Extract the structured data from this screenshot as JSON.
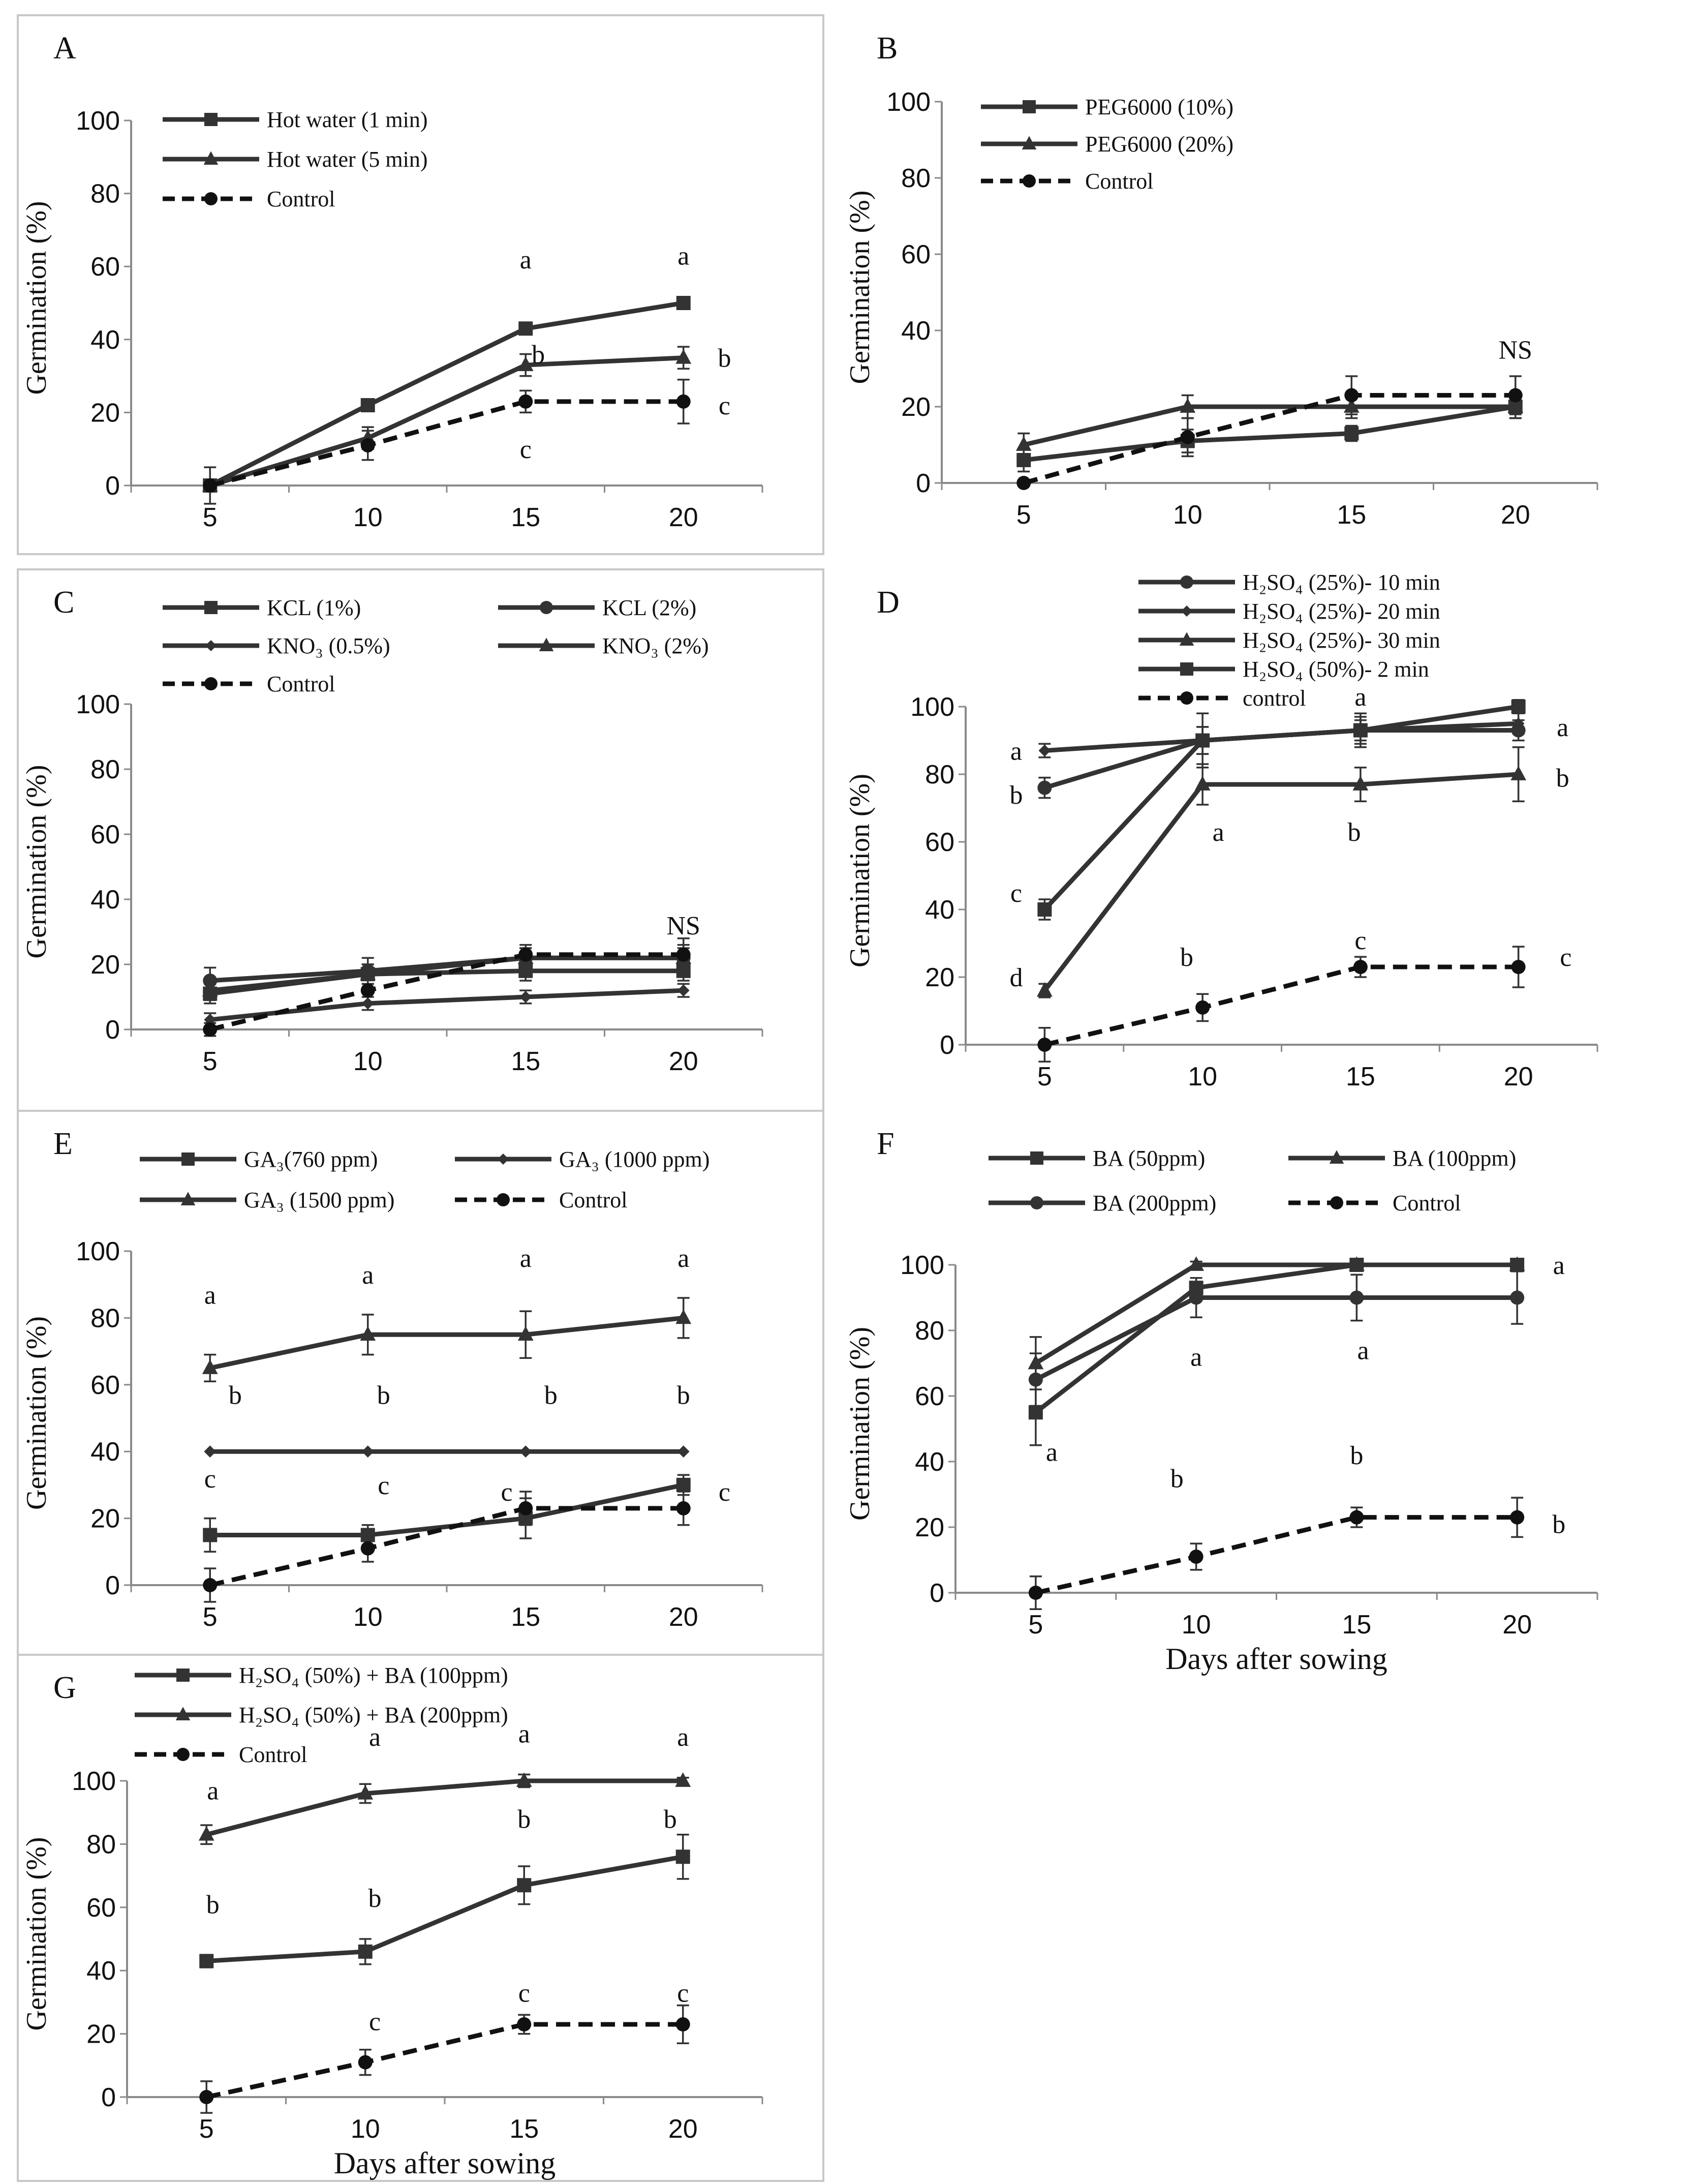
{
  "figure": {
    "x_axis_title": "Days after sowing",
    "y_axis_title": "Germination (%)"
  },
  "colors": {
    "treatment": "#333333",
    "control": "#111111",
    "frame": "#c8c8c8",
    "axis": "#8a8a8a"
  },
  "chart_data": [
    {
      "id": "A",
      "type": "line",
      "label": "A",
      "x": [
        5,
        10,
        15,
        20
      ],
      "ylim": [
        0,
        100
      ],
      "yticks": [
        0,
        20,
        40,
        60,
        80,
        100
      ],
      "xlabel": "",
      "ylabel": "Germination (%)",
      "legend_cols": 1,
      "series": [
        {
          "name": "Hot water (1 min)",
          "marker": "square",
          "dash": false,
          "values": [
            0,
            22,
            43,
            50
          ],
          "err": [
            0,
            1,
            1,
            1
          ]
        },
        {
          "name": "Hot water (5 min)",
          "marker": "triangle",
          "dash": false,
          "values": [
            0,
            13,
            33,
            35
          ],
          "err": [
            0,
            3,
            3,
            3
          ]
        },
        {
          "name": "Control",
          "marker": "circle",
          "dash": true,
          "values": [
            0,
            11,
            23,
            23
          ],
          "err": [
            5,
            4,
            3,
            6
          ]
        }
      ],
      "annotations": [
        {
          "text": "a",
          "x": 15,
          "y": 62
        },
        {
          "text": "a",
          "x": 20,
          "y": 63
        },
        {
          "text": "b",
          "x": 15.4,
          "y": 36
        },
        {
          "text": "b",
          "x": 21.3,
          "y": 35
        },
        {
          "text": "c",
          "x": 21.3,
          "y": 22
        },
        {
          "text": "c",
          "x": 15,
          "y": 10
        }
      ]
    },
    {
      "id": "B",
      "type": "line",
      "label": "B",
      "x": [
        5,
        10,
        15,
        20
      ],
      "ylim": [
        0,
        100
      ],
      "yticks": [
        0,
        20,
        40,
        60,
        80,
        100
      ],
      "xlabel": "",
      "ylabel": "Germination (%)",
      "legend_cols": 1,
      "series": [
        {
          "name": "PEG6000 (10%)",
          "marker": "square",
          "dash": false,
          "values": [
            6,
            11,
            13,
            20
          ],
          "err": [
            3,
            3,
            2,
            3
          ]
        },
        {
          "name": "PEG6000 (20%)",
          "marker": "triangle",
          "dash": false,
          "values": [
            10,
            20,
            20,
            20
          ],
          "err": [
            3,
            3,
            3,
            3
          ]
        },
        {
          "name": "Control",
          "marker": "circle",
          "dash": true,
          "values": [
            0,
            12,
            23,
            23
          ],
          "err": [
            0,
            5,
            5,
            5
          ]
        }
      ],
      "annotations": [
        {
          "text": "NS",
          "x": 20,
          "y": 35
        }
      ]
    },
    {
      "id": "C",
      "type": "line",
      "label": "C",
      "x": [
        5,
        10,
        15,
        20
      ],
      "ylim": [
        0,
        100
      ],
      "yticks": [
        0,
        20,
        40,
        60,
        80,
        100
      ],
      "xlabel": "",
      "ylabel": "Germination (%)",
      "legend_cols": 2,
      "series": [
        {
          "name": "KCL (1%)",
          "marker": "square",
          "dash": false,
          "values": [
            11,
            17,
            18,
            18
          ],
          "err": [
            3,
            3,
            3,
            3
          ]
        },
        {
          "name": "KCL (2%)",
          "marker": "circle",
          "dash": false,
          "values": [
            15,
            18,
            22,
            22
          ],
          "err": [
            4,
            4,
            3,
            4
          ]
        },
        {
          "name": "KNO₃ (0.5%)",
          "marker": "diamond",
          "dash": false,
          "values": [
            3,
            8,
            10,
            12
          ],
          "err": [
            2,
            2,
            2,
            2
          ]
        },
        {
          "name": "KNO₃ (2%)",
          "marker": "triangle",
          "dash": false,
          "values": [
            12,
            17,
            22,
            22
          ],
          "err": [
            3,
            3,
            3,
            3
          ]
        },
        {
          "name": "Control",
          "marker": "circle",
          "dash": true,
          "values": [
            0,
            12,
            23,
            23
          ],
          "err": [
            2,
            4,
            3,
            5
          ]
        }
      ],
      "annotations": [
        {
          "text": "NS",
          "x": 20,
          "y": 32
        }
      ]
    },
    {
      "id": "D",
      "type": "line",
      "label": "D",
      "x": [
        5,
        10,
        15,
        20
      ],
      "ylim": [
        0,
        100
      ],
      "yticks": [
        0,
        20,
        40,
        60,
        80,
        100
      ],
      "xlabel": "",
      "ylabel": "Germination (%)",
      "legend_cols": 1,
      "series": [
        {
          "name": "H₂SO₄ (25%)- 10 min",
          "marker": "circle",
          "dash": false,
          "values": [
            76,
            90,
            93,
            93
          ],
          "err": [
            3,
            4,
            3,
            3
          ]
        },
        {
          "name": "H₂SO₄ (25%)- 20 min",
          "marker": "diamond",
          "dash": false,
          "values": [
            87,
            90,
            93,
            95
          ],
          "err": [
            2,
            4,
            4,
            3
          ]
        },
        {
          "name": "H₂SO₄ (25%)- 30 min",
          "marker": "triangle",
          "dash": false,
          "values": [
            16,
            77,
            77,
            80
          ],
          "err": [
            2,
            6,
            5,
            8
          ]
        },
        {
          "name": "H₂SO₄ (50%)- 2 min",
          "marker": "square",
          "dash": false,
          "values": [
            40,
            90,
            93,
            100
          ],
          "err": [
            3,
            8,
            5,
            2
          ]
        },
        {
          "name": "control",
          "marker": "circle",
          "dash": true,
          "values": [
            0,
            11,
            23,
            23
          ],
          "err": [
            5,
            4,
            3,
            6
          ]
        }
      ],
      "annotations": [
        {
          "text": "a",
          "x": 15,
          "y": 103
        },
        {
          "text": "a",
          "x": 4.1,
          "y": 87
        },
        {
          "text": "a",
          "x": 21.4,
          "y": 94
        },
        {
          "text": "b",
          "x": 4.1,
          "y": 74
        },
        {
          "text": "b",
          "x": 21.4,
          "y": 79
        },
        {
          "text": "a",
          "x": 10.5,
          "y": 63
        },
        {
          "text": "b",
          "x": 14.8,
          "y": 63
        },
        {
          "text": "c",
          "x": 4.1,
          "y": 45
        },
        {
          "text": "d",
          "x": 4.1,
          "y": 20
        },
        {
          "text": "b",
          "x": 9.5,
          "y": 26
        },
        {
          "text": "c",
          "x": 15,
          "y": 31
        },
        {
          "text": "c",
          "x": 21.5,
          "y": 26
        }
      ]
    },
    {
      "id": "E",
      "type": "line",
      "label": "E",
      "x": [
        5,
        10,
        15,
        20
      ],
      "ylim": [
        0,
        100
      ],
      "yticks": [
        0,
        20,
        40,
        60,
        80,
        100
      ],
      "xlabel": "",
      "ylabel": "Germination (%)",
      "legend_cols": 2,
      "series": [
        {
          "name": "GA₃(760 ppm)",
          "marker": "square",
          "dash": false,
          "values": [
            15,
            15,
            20,
            30
          ],
          "err": [
            5,
            3,
            6,
            3
          ]
        },
        {
          "name": "GA₃ (1000 ppm)",
          "marker": "diamond",
          "dash": false,
          "values": [
            40,
            40,
            40,
            40
          ],
          "err": [
            0,
            0,
            0,
            0
          ]
        },
        {
          "name": "GA₃ (1500 ppm)",
          "marker": "triangle",
          "dash": false,
          "values": [
            65,
            75,
            75,
            80
          ],
          "err": [
            4,
            6,
            7,
            6
          ]
        },
        {
          "name": "Control",
          "marker": "circle",
          "dash": true,
          "values": [
            0,
            11,
            23,
            23
          ],
          "err": [
            5,
            4,
            5,
            5
          ]
        }
      ],
      "annotations": [
        {
          "text": "a",
          "x": 5,
          "y": 87
        },
        {
          "text": "a",
          "x": 10,
          "y": 93
        },
        {
          "text": "a",
          "x": 15,
          "y": 98
        },
        {
          "text": "a",
          "x": 20,
          "y": 98
        },
        {
          "text": "b",
          "x": 5.8,
          "y": 57
        },
        {
          "text": "b",
          "x": 10.5,
          "y": 57
        },
        {
          "text": "b",
          "x": 15.8,
          "y": 57
        },
        {
          "text": "b",
          "x": 20,
          "y": 57
        },
        {
          "text": "c",
          "x": 5,
          "y": 32
        },
        {
          "text": "c",
          "x": 10.5,
          "y": 30
        },
        {
          "text": "c",
          "x": 14.4,
          "y": 28
        },
        {
          "text": "c",
          "x": 21.3,
          "y": 28
        }
      ]
    },
    {
      "id": "F",
      "type": "line",
      "label": "F",
      "x": [
        5,
        10,
        15,
        20
      ],
      "ylim": [
        0,
        100
      ],
      "yticks": [
        0,
        20,
        40,
        60,
        80,
        100
      ],
      "xlabel": "Days after sowing",
      "ylabel": "Germination (%)",
      "legend_cols": 2,
      "series": [
        {
          "name": "BA (50ppm)",
          "marker": "square",
          "dash": false,
          "values": [
            55,
            93,
            100,
            100
          ],
          "err": [
            10,
            3,
            1,
            1
          ]
        },
        {
          "name": "BA (100ppm)",
          "marker": "triangle",
          "dash": false,
          "values": [
            70,
            100,
            100,
            100
          ],
          "err": [
            8,
            1,
            1,
            1
          ]
        },
        {
          "name": "BA (200ppm)",
          "marker": "circle",
          "dash": false,
          "values": [
            65,
            90,
            90,
            90
          ],
          "err": [
            8,
            6,
            7,
            8
          ]
        },
        {
          "name": "Control",
          "marker": "circle",
          "dash": true,
          "values": [
            0,
            11,
            23,
            23
          ],
          "err": [
            5,
            4,
            3,
            6
          ]
        }
      ],
      "annotations": [
        {
          "text": "a",
          "x": 21.3,
          "y": 100
        },
        {
          "text": "a",
          "x": 10,
          "y": 72
        },
        {
          "text": "a",
          "x": 15.2,
          "y": 74
        },
        {
          "text": "a",
          "x": 5.5,
          "y": 43
        },
        {
          "text": "b",
          "x": 9.4,
          "y": 35
        },
        {
          "text": "b",
          "x": 15,
          "y": 42
        },
        {
          "text": "b",
          "x": 21.3,
          "y": 21
        }
      ]
    },
    {
      "id": "G",
      "type": "line",
      "label": "G",
      "x": [
        5,
        10,
        15,
        20
      ],
      "ylim": [
        0,
        100
      ],
      "yticks": [
        0,
        20,
        40,
        60,
        80,
        100
      ],
      "xlabel": "Days after sowing",
      "ylabel": "Germination (%)",
      "legend_cols": 1,
      "series": [
        {
          "name": "H₂SO₄ (50%) + BA (100ppm)",
          "marker": "square",
          "dash": false,
          "values": [
            43,
            46,
            67,
            76
          ],
          "err": [
            2,
            4,
            6,
            7
          ]
        },
        {
          "name": "H₂SO₄ (50%) + BA (200ppm)",
          "marker": "triangle",
          "dash": false,
          "values": [
            83,
            96,
            100,
            100
          ],
          "err": [
            3,
            3,
            2,
            1
          ]
        },
        {
          "name": "Control",
          "marker": "circle",
          "dash": true,
          "values": [
            0,
            11,
            23,
            23
          ],
          "err": [
            5,
            4,
            3,
            6
          ]
        }
      ],
      "annotations": [
        {
          "text": "a",
          "x": 5.2,
          "y": 97
        },
        {
          "text": "a",
          "x": 10.3,
          "y": 114
        },
        {
          "text": "a",
          "x": 15,
          "y": 115
        },
        {
          "text": "a",
          "x": 20,
          "y": 114
        },
        {
          "text": "b",
          "x": 5.2,
          "y": 61
        },
        {
          "text": "b",
          "x": 10.3,
          "y": 63
        },
        {
          "text": "b",
          "x": 15,
          "y": 88
        },
        {
          "text": "b",
          "x": 19.6,
          "y": 88
        },
        {
          "text": "c",
          "x": 10.3,
          "y": 24
        },
        {
          "text": "c",
          "x": 15,
          "y": 33
        },
        {
          "text": "c",
          "x": 20,
          "y": 33
        }
      ]
    }
  ]
}
